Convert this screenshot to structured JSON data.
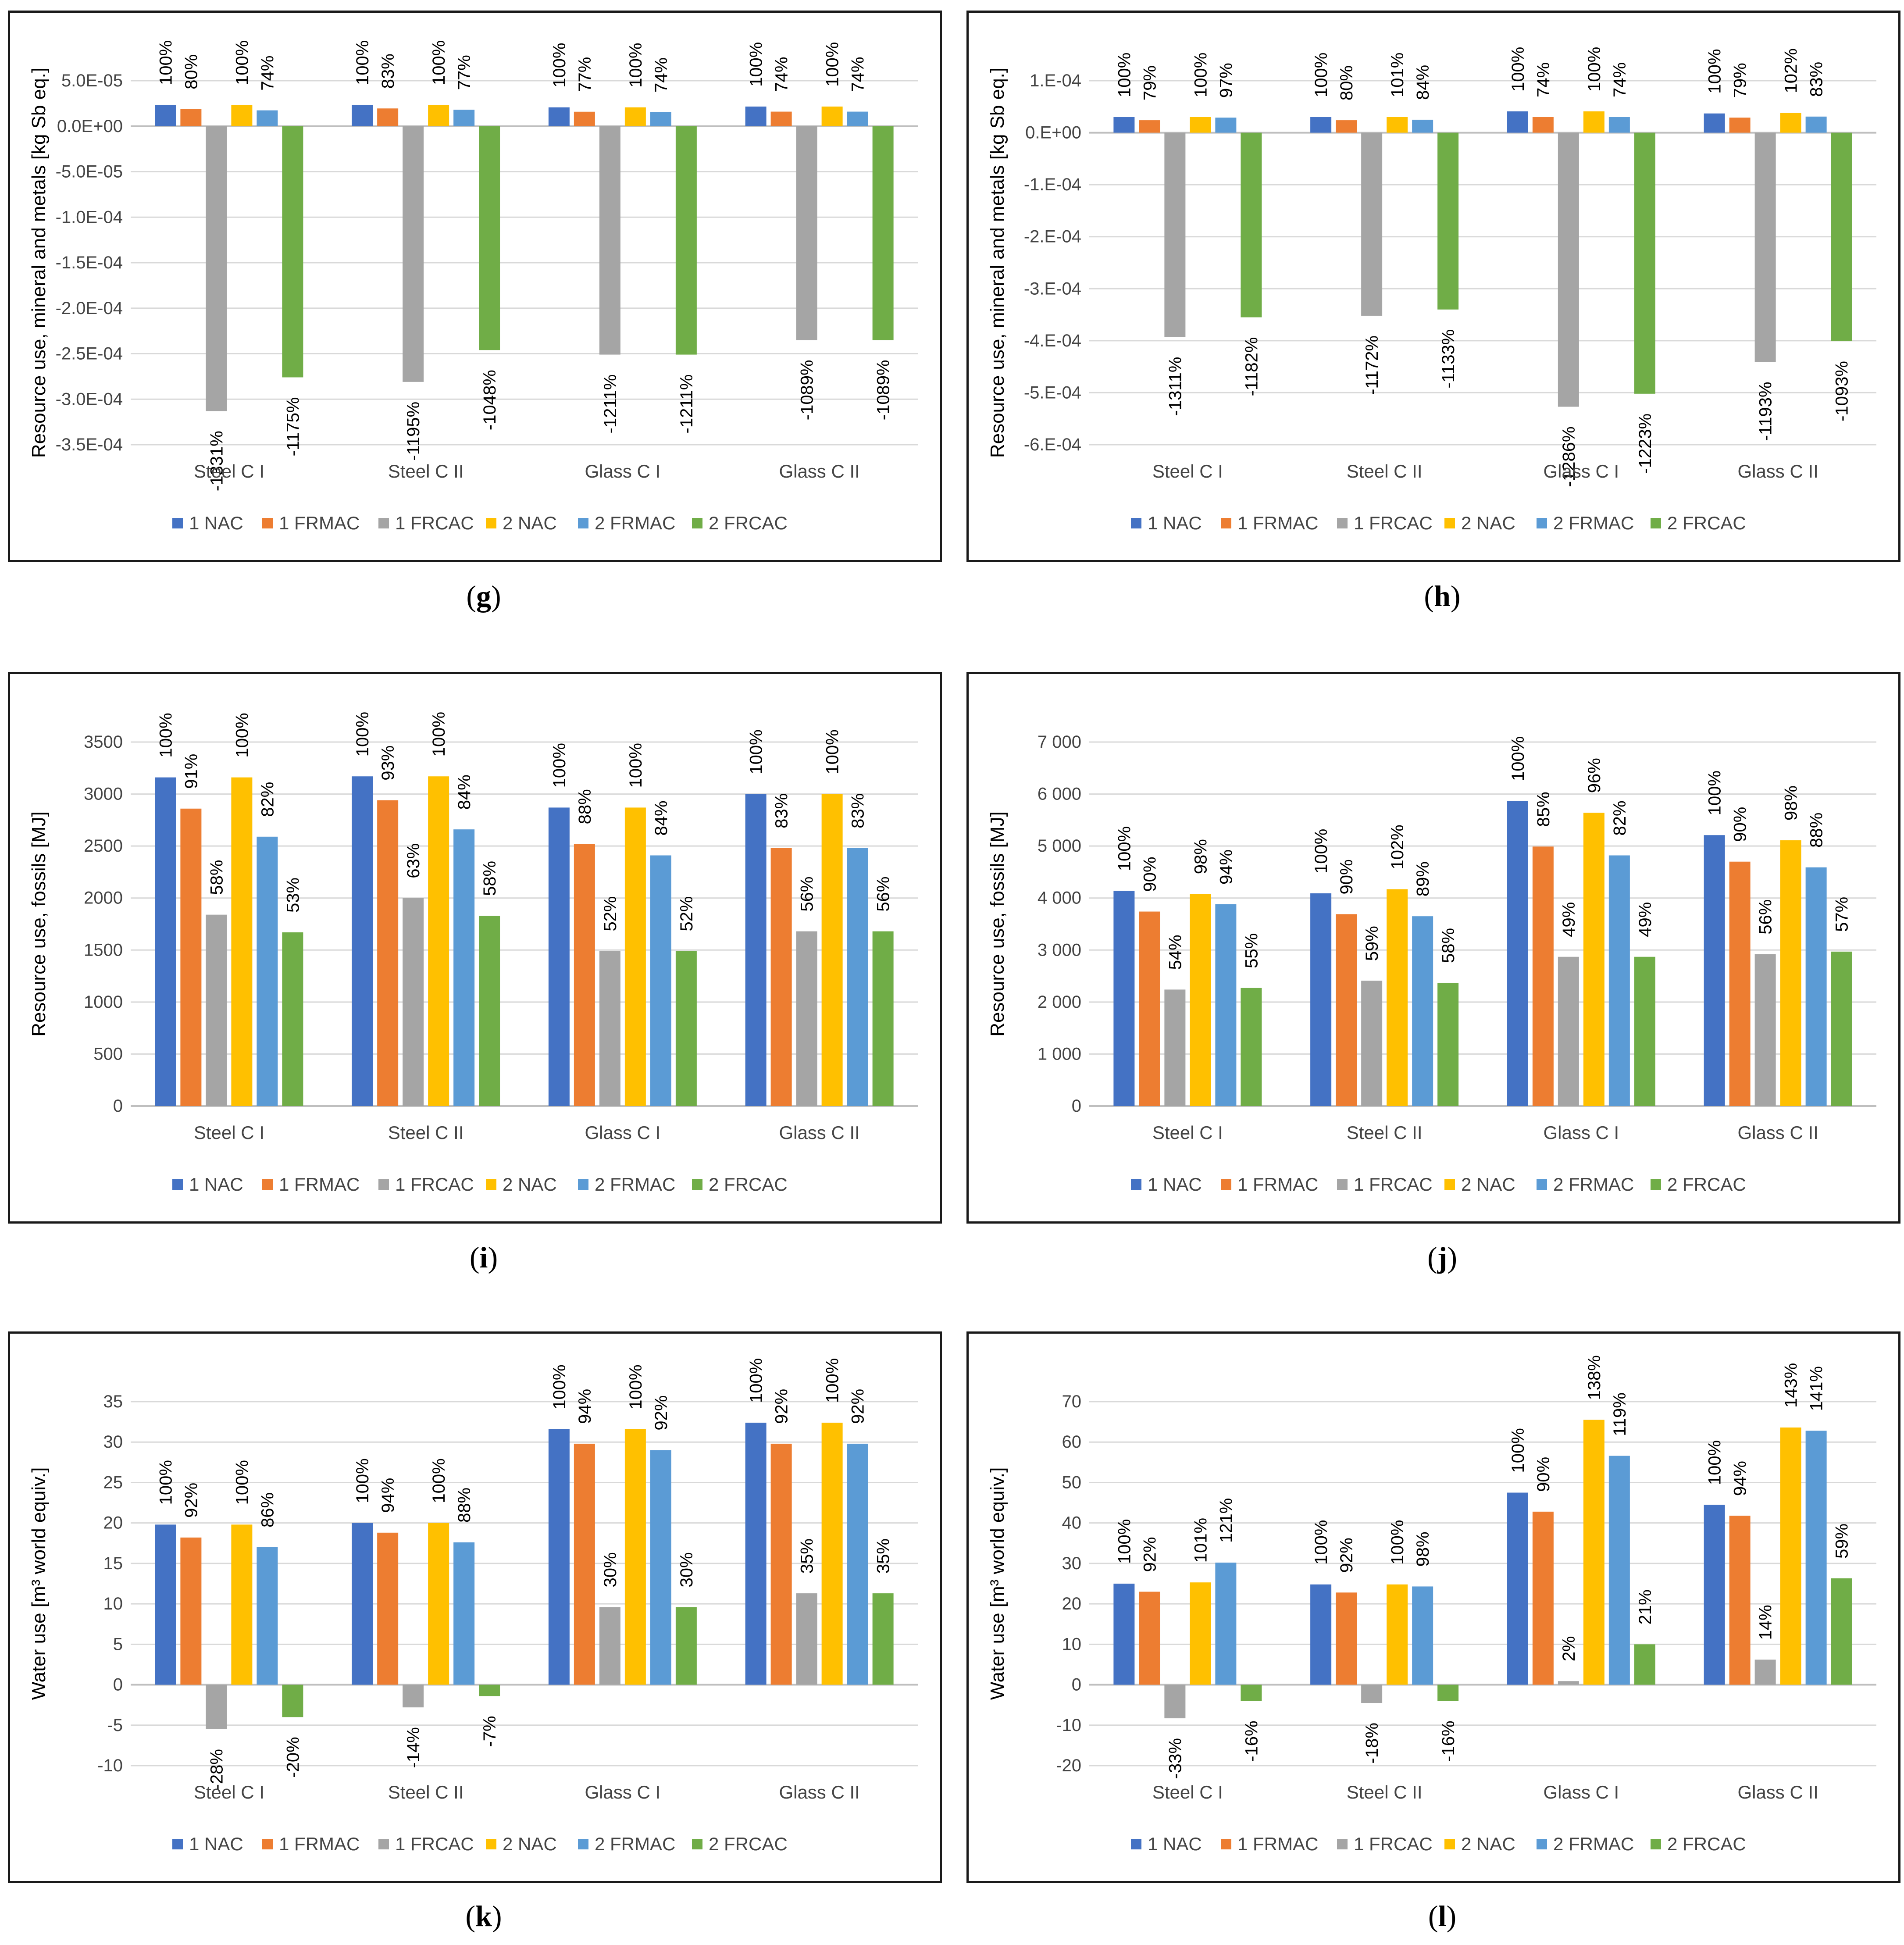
{
  "legend_labels": [
    "1 NAC",
    "1 FRMAC",
    "1 FRCAC",
    "2 NAC",
    "2 FRMAC",
    "2 FRCAC"
  ],
  "series_colors": [
    "#4472C4",
    "#ED7D31",
    "#A5A5A5",
    "#FFC000",
    "#5B9BD5",
    "#70AD47"
  ],
  "categories": [
    "Steel C I",
    "Steel C II",
    "Glass C I",
    "Glass C II"
  ],
  "panel_labels": [
    {
      "open": "(",
      "letter": "g",
      "close": ")"
    },
    {
      "open": "(",
      "letter": "h",
      "close": ")"
    },
    {
      "open": "(",
      "letter": "i",
      "close": ")"
    },
    {
      "open": "(",
      "letter": "j",
      "close": ")"
    },
    {
      "open": "(",
      "letter": "k",
      "close": ")"
    },
    {
      "open": "(",
      "letter": "l",
      "close": ")"
    }
  ],
  "chart_data": [
    {
      "type": "bar",
      "title": "",
      "xlabel": "",
      "ylabel": "Resource use, mineral and metals [kg Sb eq.]",
      "ylim": [
        -0.00035,
        5e-05
      ],
      "yticks": [
        -0.00035,
        -0.0003,
        -0.00025,
        -0.0002,
        -0.00015,
        -0.0001,
        -5e-05,
        0,
        5e-05
      ],
      "yticklabels": [
        "-3.5E-04",
        "-3.0E-04",
        "-2.5E-04",
        "-2.0E-04",
        "-1.5E-04",
        "-1.0E-04",
        "-5.0E-05",
        "0.0E+00",
        "5.0E-05"
      ],
      "grid": true,
      "legend": "bottom",
      "categories": [
        "Steel C I",
        "Steel C II",
        "Glass C I",
        "Glass C II"
      ],
      "series": [
        {
          "name": "1 NAC",
          "values": [
            2.35e-05,
            2.35e-05,
            2.07e-05,
            2.16e-05
          ],
          "labels": [
            "100%",
            "100%",
            "100%",
            "100%"
          ]
        },
        {
          "name": "1 FRMAC",
          "values": [
            1.88e-05,
            1.95e-05,
            1.59e-05,
            1.6e-05
          ],
          "labels": [
            "80%",
            "83%",
            "77%",
            "74%"
          ]
        },
        {
          "name": "1 FRCAC",
          "values": [
            -0.000313,
            -0.000281,
            -0.000251,
            -0.000235
          ],
          "labels": [
            "-1331%",
            "-1195%",
            "-1211%",
            "-1089%"
          ]
        },
        {
          "name": "2 NAC",
          "values": [
            2.35e-05,
            2.35e-05,
            2.07e-05,
            2.16e-05
          ],
          "labels": [
            "100%",
            "100%",
            "100%",
            "100%"
          ]
        },
        {
          "name": "2 FRMAC",
          "values": [
            1.74e-05,
            1.81e-05,
            1.53e-05,
            1.6e-05
          ],
          "labels": [
            "74%",
            "77%",
            "74%",
            "74%"
          ]
        },
        {
          "name": "2 FRCAC",
          "values": [
            -0.000276,
            -0.000246,
            -0.000251,
            -0.000235
          ],
          "labels": [
            "-1175%",
            "-1048%",
            "-1211%",
            "-1089%"
          ]
        }
      ]
    },
    {
      "type": "bar",
      "title": "",
      "xlabel": "",
      "ylabel": "Resource use, mineral and metals [kg Sb eq.]",
      "ylim": [
        -0.0006,
        0.0001
      ],
      "yticks": [
        -0.0006,
        -0.0005,
        -0.0004,
        -0.0003,
        -0.0002,
        -0.0001,
        0,
        0.0001
      ],
      "yticklabels": [
        "-6.E-04",
        "-5.E-04",
        "-4.E-04",
        "-3.E-04",
        "-2.E-04",
        "-1.E-04",
        "0.E+00",
        "1.E-04"
      ],
      "grid": true,
      "legend": "bottom",
      "categories": [
        "Steel C I",
        "Steel C II",
        "Glass C I",
        "Glass C II"
      ],
      "series": [
        {
          "name": "1 NAC",
          "values": [
            3e-05,
            3e-05,
            4.1e-05,
            3.7e-05
          ],
          "labels": [
            "100%",
            "100%",
            "100%",
            "100%"
          ]
        },
        {
          "name": "1 FRMAC",
          "values": [
            2.4e-05,
            2.4e-05,
            3e-05,
            2.9e-05
          ],
          "labels": [
            "79%",
            "80%",
            "74%",
            "79%"
          ]
        },
        {
          "name": "1 FRCAC",
          "values": [
            -0.000393,
            -0.000352,
            -0.000527,
            -0.000441
          ],
          "labels": [
            "-1311%",
            "-1172%",
            "-1286%",
            "-1193%"
          ]
        },
        {
          "name": "2 NAC",
          "values": [
            3e-05,
            3e-05,
            4.1e-05,
            3.8e-05
          ],
          "labels": [
            "100%",
            "101%",
            "100%",
            "102%"
          ]
        },
        {
          "name": "2 FRMAC",
          "values": [
            2.9e-05,
            2.5e-05,
            3e-05,
            3.1e-05
          ],
          "labels": [
            "97%",
            "84%",
            "74%",
            "83%"
          ]
        },
        {
          "name": "2 FRCAC",
          "values": [
            -0.000355,
            -0.00034,
            -0.000502,
            -0.000401
          ],
          "labels": [
            "-1182%",
            "-1133%",
            "-1223%",
            "-1093%"
          ]
        }
      ]
    },
    {
      "type": "bar",
      "title": "",
      "xlabel": "",
      "ylabel": "Resource use, fossils [MJ]",
      "ylim": [
        0,
        3500
      ],
      "yticks": [
        0,
        500,
        1000,
        1500,
        2000,
        2500,
        3000,
        3500
      ],
      "yticklabels": [
        "0",
        "500",
        "1000",
        "1500",
        "2000",
        "2500",
        "3000",
        "3500"
      ],
      "grid": true,
      "legend": "bottom",
      "categories": [
        "Steel C I",
        "Steel C II",
        "Glass C I",
        "Glass C II"
      ],
      "series": [
        {
          "name": "1 NAC",
          "values": [
            3160,
            3170,
            2870,
            3000
          ],
          "labels": [
            "100%",
            "100%",
            "100%",
            "100%"
          ]
        },
        {
          "name": "1 FRMAC",
          "values": [
            2860,
            2940,
            2520,
            2480
          ],
          "labels": [
            "91%",
            "93%",
            "88%",
            "83%"
          ]
        },
        {
          "name": "1 FRCAC",
          "values": [
            1840,
            2000,
            1490,
            1680
          ],
          "labels": [
            "58%",
            "63%",
            "52%",
            "56%"
          ]
        },
        {
          "name": "2 NAC",
          "values": [
            3160,
            3170,
            2870,
            3000
          ],
          "labels": [
            "100%",
            "100%",
            "100%",
            "100%"
          ]
        },
        {
          "name": "2 FRMAC",
          "values": [
            2590,
            2660,
            2410,
            2480
          ],
          "labels": [
            "82%",
            "84%",
            "84%",
            "83%"
          ]
        },
        {
          "name": "2 FRCAC",
          "values": [
            1670,
            1830,
            1490,
            1680
          ],
          "labels": [
            "53%",
            "58%",
            "52%",
            "56%"
          ]
        }
      ]
    },
    {
      "type": "bar",
      "title": "",
      "xlabel": "",
      "ylabel": "Resource use, fossils [MJ]",
      "ylim": [
        0,
        7000
      ],
      "yticks": [
        0,
        1000,
        2000,
        3000,
        4000,
        5000,
        6000,
        7000
      ],
      "yticklabels": [
        "0",
        "1 000",
        "2 000",
        "3 000",
        "4 000",
        "5 000",
        "6 000",
        "7 000"
      ],
      "grid": true,
      "legend": "bottom",
      "categories": [
        "Steel C I",
        "Steel C II",
        "Glass C I",
        "Glass C II"
      ],
      "series": [
        {
          "name": "1 NAC",
          "values": [
            4140,
            4090,
            5870,
            5210
          ],
          "labels": [
            "100%",
            "100%",
            "100%",
            "100%"
          ]
        },
        {
          "name": "1 FRMAC",
          "values": [
            3740,
            3690,
            4990,
            4700
          ],
          "labels": [
            "90%",
            "90%",
            "85%",
            "90%"
          ]
        },
        {
          "name": "1 FRCAC",
          "values": [
            2240,
            2410,
            2870,
            2920
          ],
          "labels": [
            "54%",
            "59%",
            "49%",
            "56%"
          ]
        },
        {
          "name": "2 NAC",
          "values": [
            4080,
            4170,
            5640,
            5110
          ],
          "labels": [
            "98%",
            "102%",
            "96%",
            "98%"
          ]
        },
        {
          "name": "2 FRMAC",
          "values": [
            3880,
            3650,
            4820,
            4590
          ],
          "labels": [
            "94%",
            "89%",
            "82%",
            "88%"
          ]
        },
        {
          "name": "2 FRCAC",
          "values": [
            2270,
            2370,
            2870,
            2970
          ],
          "labels": [
            "55%",
            "58%",
            "49%",
            "57%"
          ]
        }
      ]
    },
    {
      "type": "bar",
      "title": "",
      "xlabel": "",
      "ylabel": "Water use [m³ world equiv.]",
      "ylim": [
        -10,
        35
      ],
      "yticks": [
        -10,
        -5,
        0,
        5,
        10,
        15,
        20,
        25,
        30,
        35
      ],
      "yticklabels": [
        "-10",
        "-5",
        "0",
        "5",
        "10",
        "15",
        "20",
        "25",
        "30",
        "35"
      ],
      "grid": true,
      "legend": "bottom",
      "categories": [
        "Steel C I",
        "Steel C II",
        "Glass C I",
        "Glass C II"
      ],
      "series": [
        {
          "name": "1 NAC",
          "values": [
            19.8,
            20.0,
            31.6,
            32.4
          ],
          "labels": [
            "100%",
            "100%",
            "100%",
            "100%"
          ]
        },
        {
          "name": "1 FRMAC",
          "values": [
            18.2,
            18.8,
            29.8,
            29.8
          ],
          "labels": [
            "92%",
            "94%",
            "94%",
            "92%"
          ]
        },
        {
          "name": "1 FRCAC",
          "values": [
            -5.5,
            -2.8,
            9.6,
            11.3
          ],
          "labels": [
            "-28%",
            "-14%",
            "30%",
            "35%"
          ]
        },
        {
          "name": "2 NAC",
          "values": [
            19.8,
            20.0,
            31.6,
            32.4
          ],
          "labels": [
            "100%",
            "100%",
            "100%",
            "100%"
          ]
        },
        {
          "name": "2 FRMAC",
          "values": [
            17.0,
            17.6,
            29.0,
            29.8
          ],
          "labels": [
            "86%",
            "88%",
            "92%",
            "92%"
          ]
        },
        {
          "name": "2 FRCAC",
          "values": [
            -4.0,
            -1.4,
            9.6,
            11.3
          ],
          "labels": [
            "-20%",
            "-7%",
            "30%",
            "35%"
          ]
        }
      ]
    },
    {
      "type": "bar",
      "title": "",
      "xlabel": "",
      "ylabel": "Water use [m³ world equiv.]",
      "ylim": [
        -20,
        70
      ],
      "yticks": [
        -20,
        -10,
        0,
        10,
        20,
        30,
        40,
        50,
        60,
        70
      ],
      "yticklabels": [
        "-20",
        "-10",
        "0",
        "10",
        "20",
        "30",
        "40",
        "50",
        "60",
        "70"
      ],
      "grid": true,
      "legend": "bottom",
      "categories": [
        "Steel C I",
        "Steel C II",
        "Glass C I",
        "Glass C II"
      ],
      "series": [
        {
          "name": "1 NAC",
          "values": [
            25.0,
            24.8,
            47.5,
            44.5
          ],
          "labels": [
            "100%",
            "100%",
            "100%",
            "100%"
          ]
        },
        {
          "name": "1 FRMAC",
          "values": [
            23.0,
            22.8,
            42.8,
            41.8
          ],
          "labels": [
            "92%",
            "92%",
            "90%",
            "94%"
          ]
        },
        {
          "name": "1 FRCAC",
          "values": [
            -8.3,
            -4.5,
            0.9,
            6.2
          ],
          "labels": [
            "-33%",
            "-18%",
            "2%",
            "14%"
          ]
        },
        {
          "name": "2 NAC",
          "values": [
            25.3,
            24.8,
            65.5,
            63.6
          ],
          "labels": [
            "101%",
            "100%",
            "138%",
            "143%"
          ]
        },
        {
          "name": "2 FRMAC",
          "values": [
            30.2,
            24.3,
            56.6,
            62.8
          ],
          "labels": [
            "121%",
            "98%",
            "119%",
            "141%"
          ]
        },
        {
          "name": "2 FRCAC",
          "values": [
            -4.0,
            -4.0,
            10.0,
            26.3
          ],
          "labels": [
            "-16%",
            "-16%",
            "21%",
            "59%"
          ]
        }
      ]
    }
  ]
}
